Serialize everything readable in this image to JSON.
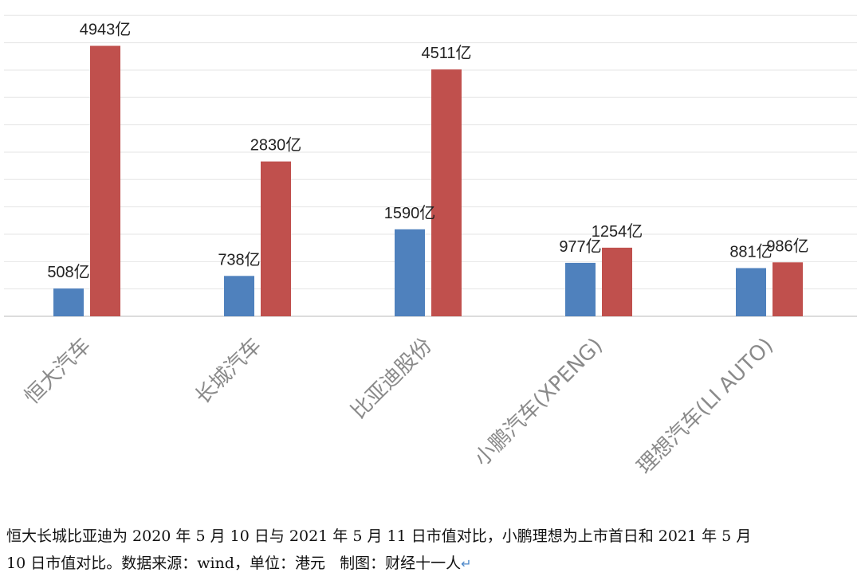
{
  "chart_data": {
    "type": "bar",
    "categories": [
      "恒大汽车",
      "长城汽车",
      "比亚迪股份",
      "小鹏汽车(XPENG)",
      "理想汽车(LI AUTO)"
    ],
    "series": [
      {
        "values": [
          508,
          738,
          1590,
          977,
          881
        ],
        "labels": [
          "508亿",
          "738亿",
          "1590亿",
          "977亿",
          "881亿"
        ],
        "color": "#4f81bd"
      },
      {
        "values": [
          4943,
          2830,
          4511,
          1254,
          986
        ],
        "labels": [
          "4943亿",
          "2830亿",
          "4511亿",
          "1254亿",
          "986亿"
        ],
        "color": "#c0504d"
      }
    ],
    "unit_suffix": "亿",
    "ylim": [
      0,
      5600
    ],
    "grid": true,
    "gridline_color": "#e6e6e6",
    "legend": "none",
    "title": "",
    "xlabel": "",
    "ylabel": ""
  },
  "caption": {
    "line1": "恒大长城比亚迪为 2020 年 5 月 10 日与 2021 年 5 月 11 日市值对比，小鹏理想为上市首日和 2021 年 5 月",
    "line2": "10 日市值对比。数据来源：wind，单位：港元   制图：财经十一人"
  }
}
